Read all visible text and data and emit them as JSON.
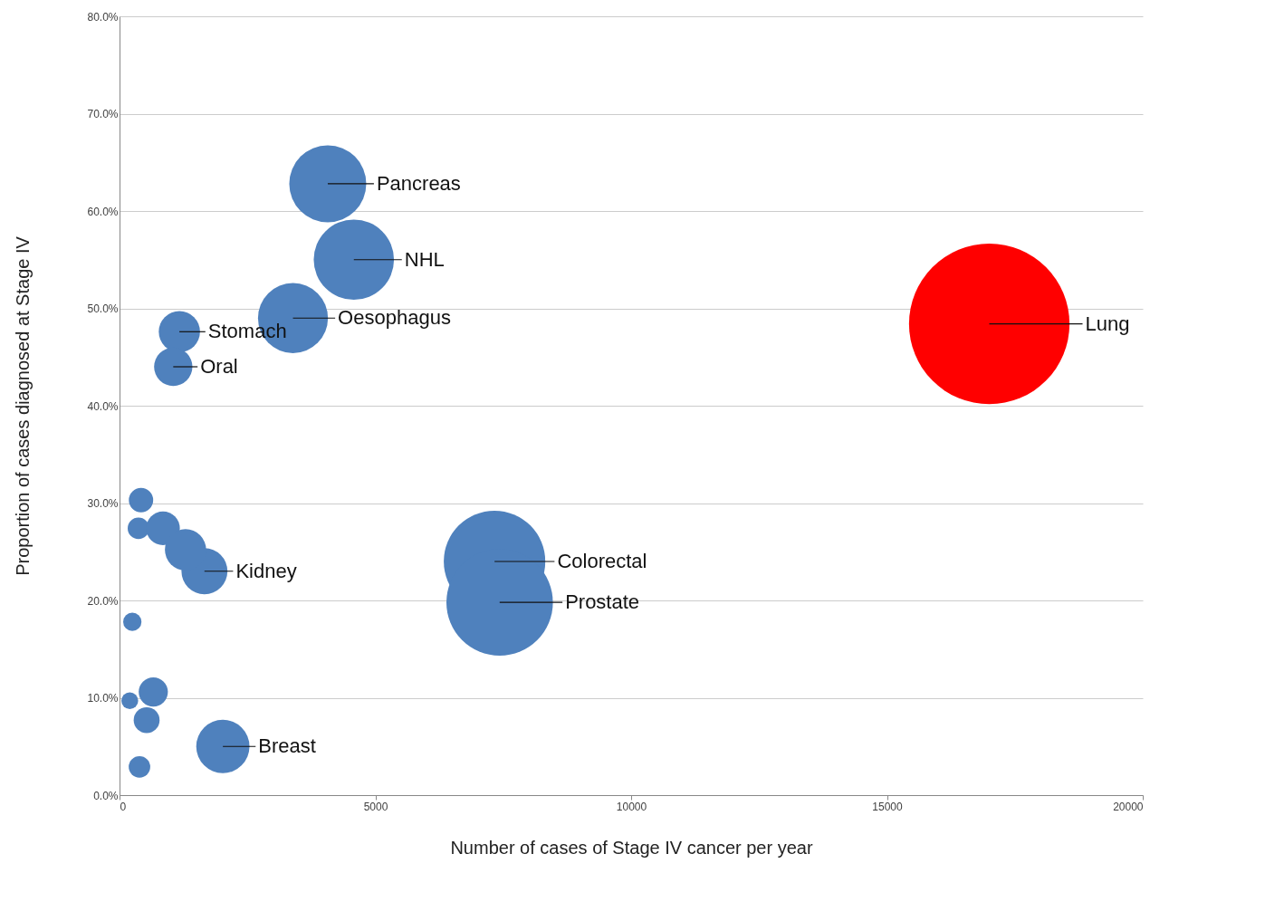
{
  "chart_data": {
    "type": "bubble",
    "xlabel": "Number of cases of Stage IV cancer per year",
    "ylabel": "Proportion of cases diagnosed at Stage IV",
    "x": [
      4070,
      4580,
      3390,
      1170,
      1050,
      17000,
      7330,
      7430,
      1660,
      420,
      370,
      850,
      1290,
      250,
      660,
      200,
      530,
      390,
      2020
    ],
    "values": [
      62.8,
      55.0,
      49.0,
      47.6,
      44.0,
      48.4,
      24.0,
      19.8,
      23.0,
      30.3,
      27.4,
      27.4,
      25.2,
      17.8,
      10.6,
      9.7,
      7.7,
      2.9,
      5.0
    ],
    "sizes": [
      0.23,
      0.25,
      0.19,
      0.066,
      0.057,
      1,
      0.4,
      0.44,
      0.082,
      0.023,
      0.018,
      0.044,
      0.066,
      0.013,
      0.033,
      0.011,
      0.026,
      0.018,
      0.11
    ],
    "colors": [
      "#4f81bd",
      "#4f81bd",
      "#4f81bd",
      "#4f81bd",
      "#4f81bd",
      "#ff0000",
      "#4f81bd",
      "#4f81bd",
      "#4f81bd",
      "#4f81bd",
      "#4f81bd",
      "#4f81bd",
      "#4f81bd",
      "#4f81bd",
      "#4f81bd",
      "#4f81bd",
      "#4f81bd",
      "#4f81bd",
      "#4f81bd"
    ],
    "xlim": [
      0,
      20000
    ],
    "xticks": [
      0,
      5000,
      10000,
      15000,
      20000
    ],
    "ylim": [
      0,
      80
    ],
    "yticks": [
      {
        "value": 0,
        "label": "0.0%"
      },
      {
        "value": 10,
        "label": "10.0%"
      },
      {
        "value": 20,
        "label": "20.0%"
      },
      {
        "value": 30,
        "label": "30.0%"
      },
      {
        "value": 40,
        "label": "40.0%"
      },
      {
        "value": 50,
        "label": "50.0%"
      },
      {
        "value": 60,
        "label": "60.0%"
      },
      {
        "value": 70,
        "label": "70.0%"
      },
      {
        "value": 80,
        "label": "80.0%"
      }
    ],
    "grid": "y",
    "marker": "circle",
    "annotations": [
      {
        "text": "Pancreas",
        "x": 4070,
        "y": 62.8
      },
      {
        "text": "NHL",
        "x": 4580,
        "y": 55.0
      },
      {
        "text": "Oesophagus",
        "x": 3390,
        "y": 49.0
      },
      {
        "text": "Stomach",
        "x": 1170,
        "y": 47.6
      },
      {
        "text": "Oral",
        "x": 1050,
        "y": 44.0
      },
      {
        "text": "Lung",
        "x": 17000,
        "y": 48.4
      },
      {
        "text": "Colorectal",
        "x": 7330,
        "y": 24.0
      },
      {
        "text": "Prostate",
        "x": 7430,
        "y": 19.8
      },
      {
        "text": "Kidney",
        "x": 1660,
        "y": 23.0
      },
      {
        "text": "Breast",
        "x": 2020,
        "y": 5.0
      }
    ]
  }
}
